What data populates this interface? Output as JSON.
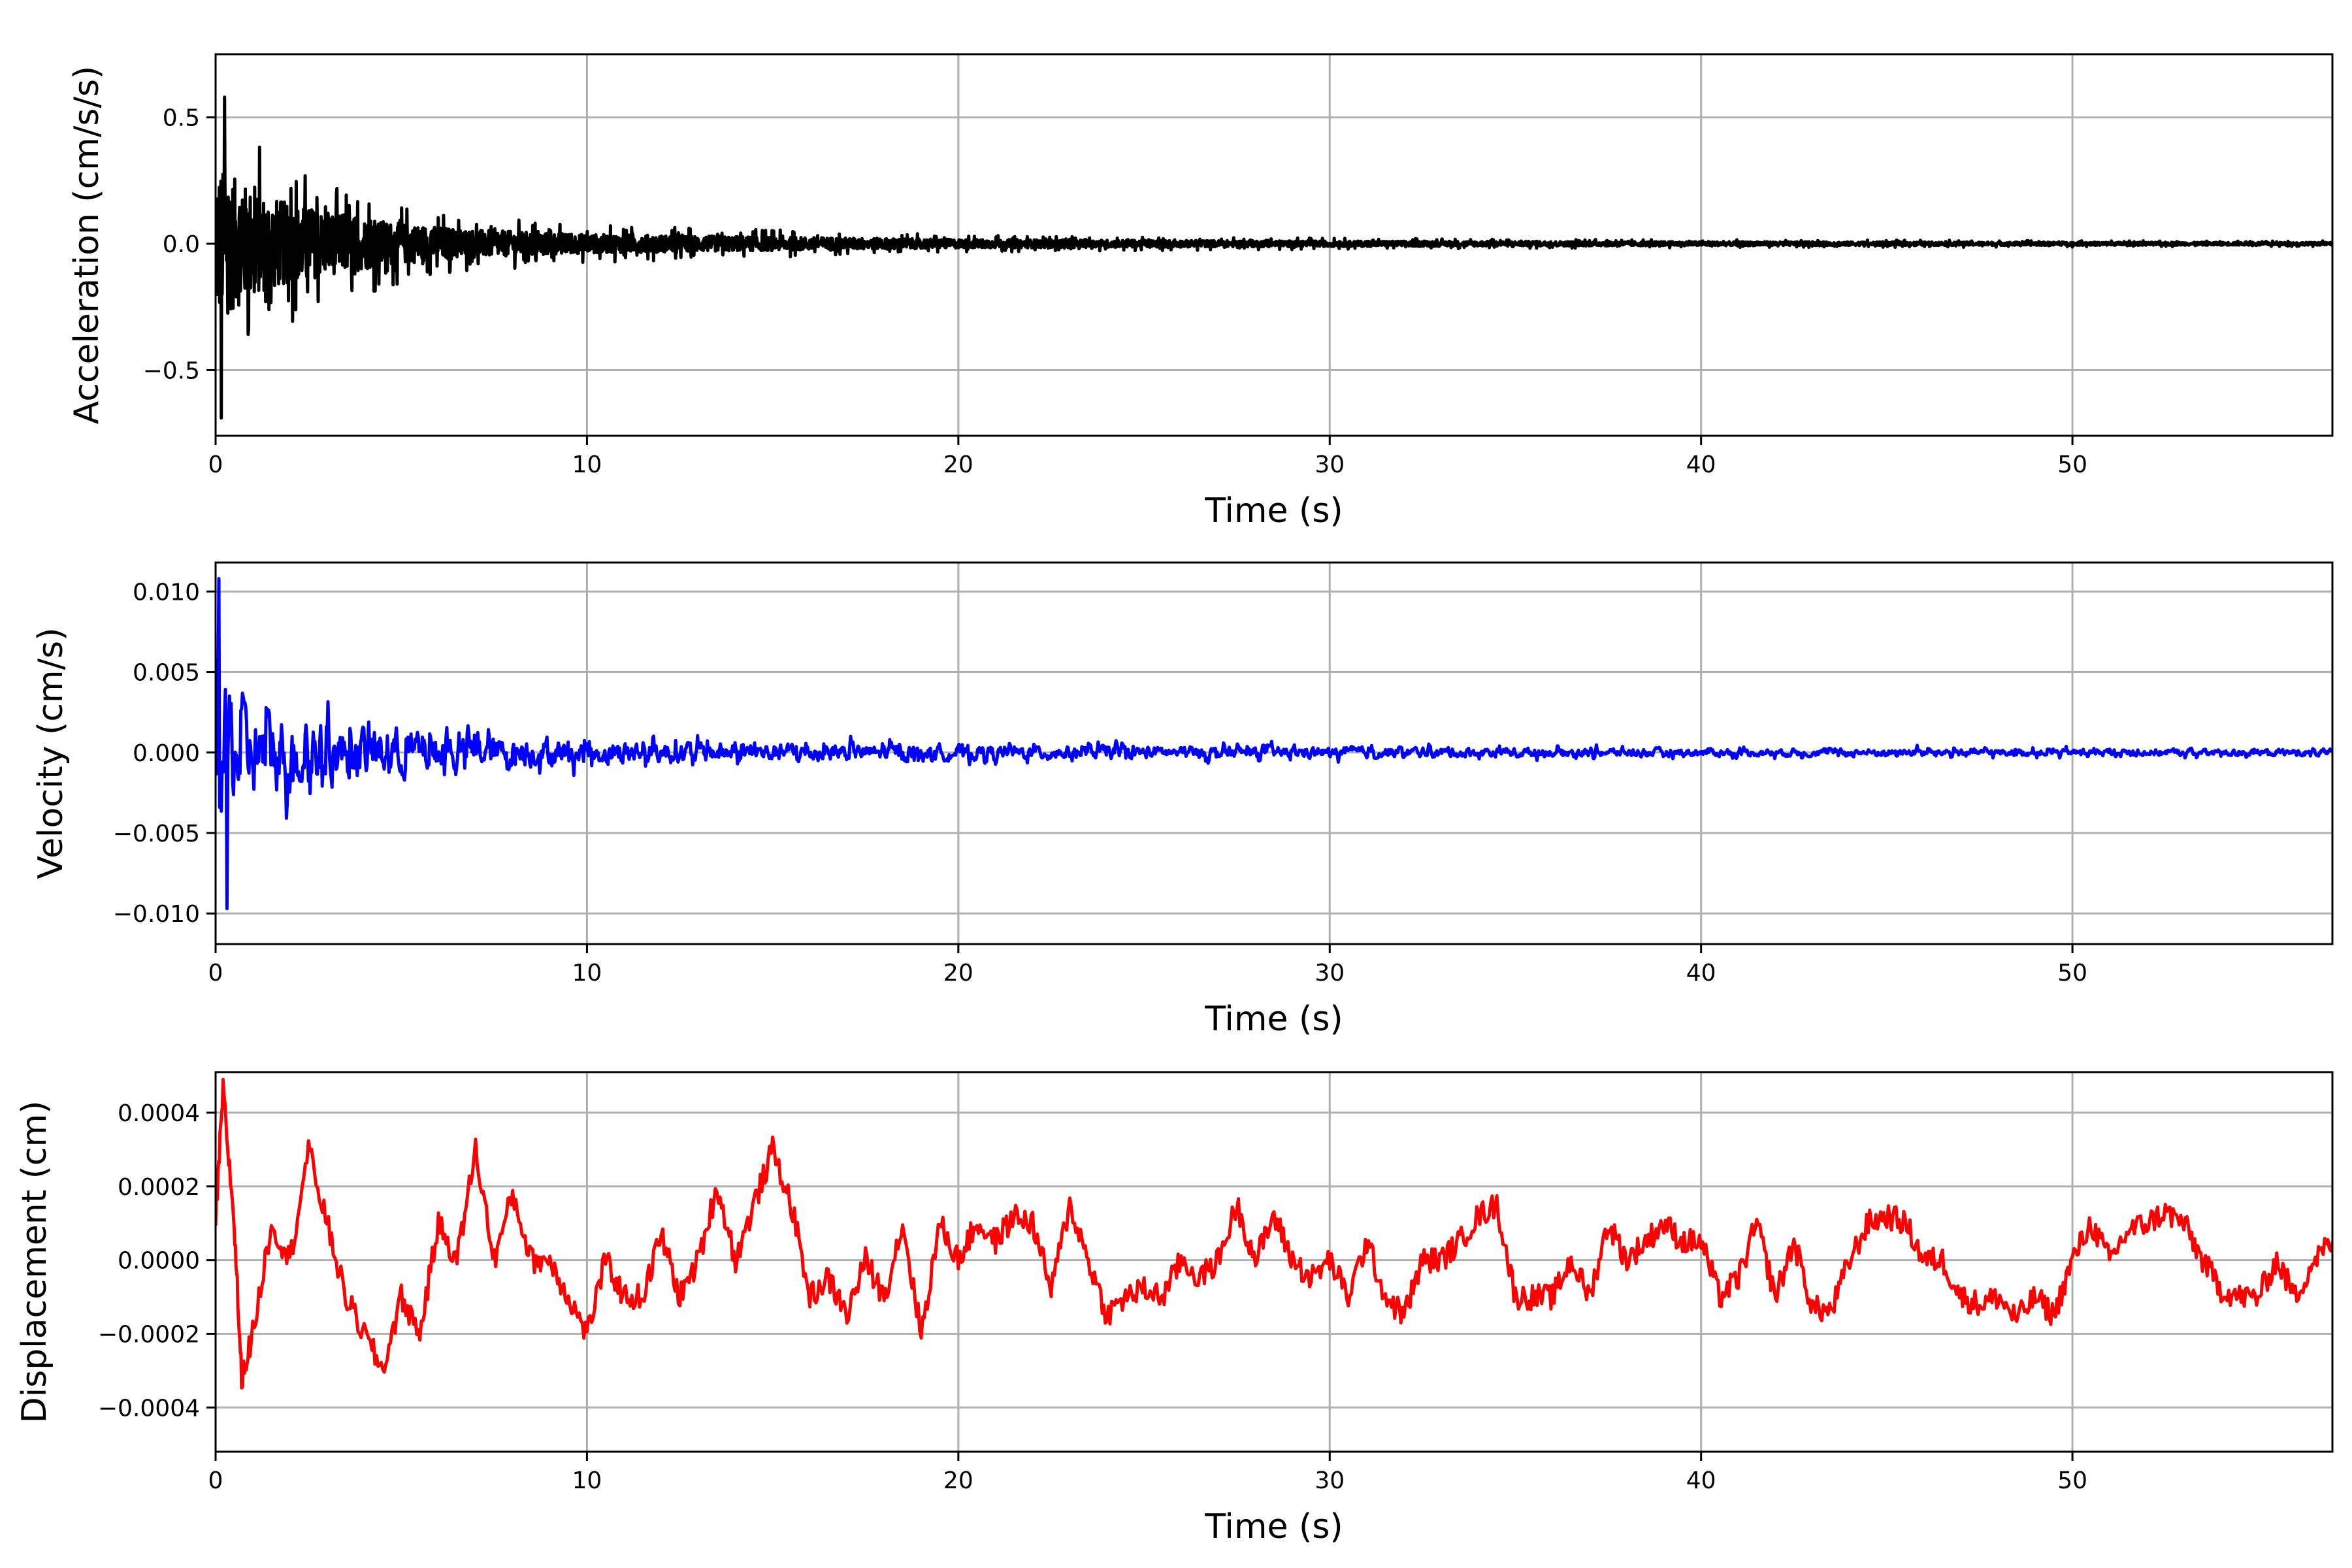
{
  "chart_data": [
    {
      "type": "line",
      "title": "",
      "xlabel": "Time (s)",
      "ylabel": "Acceleration (cm/s/s)",
      "color": "#000000",
      "xlim": [
        0,
        57
      ],
      "ylim": [
        -0.76,
        0.75
      ],
      "xticks": [
        0,
        10,
        20,
        30,
        40,
        50
      ],
      "xtick_labels": [
        "0",
        "10",
        "20",
        "30",
        "40",
        "50"
      ],
      "yticks": [
        -0.5,
        0.0,
        0.5
      ],
      "ytick_labels": [
        "−0.5",
        "0.0",
        "0.5"
      ],
      "grid": true,
      "signal": "decaying noise",
      "envelope": {
        "t": [
          0,
          1,
          2,
          3,
          5,
          7,
          10,
          15,
          20,
          30,
          40,
          57
        ],
        "amp": [
          0.62,
          0.42,
          0.32,
          0.25,
          0.16,
          0.11,
          0.075,
          0.055,
          0.035,
          0.022,
          0.016,
          0.011
        ]
      },
      "peaks": {
        "max": 0.58,
        "min": -0.69
      }
    },
    {
      "type": "line",
      "title": "",
      "xlabel": "Time (s)",
      "ylabel": "Velocity (cm/s)",
      "color": "#0000ff",
      "xlim": [
        0,
        57
      ],
      "ylim": [
        -0.0119,
        0.0118
      ],
      "xticks": [
        0,
        10,
        20,
        30,
        40,
        50
      ],
      "xtick_labels": [
        "0",
        "10",
        "20",
        "30",
        "40",
        "50"
      ],
      "yticks": [
        -0.01,
        -0.005,
        0.0,
        0.005,
        0.01
      ],
      "ytick_labels": [
        "−0.010",
        "−0.005",
        "0.000",
        "0.005",
        "0.010"
      ],
      "grid": true,
      "signal": "decaying noise",
      "envelope": {
        "t": [
          0,
          1,
          2,
          3,
          5,
          7,
          10,
          15,
          20,
          30,
          40,
          57
        ],
        "amp": [
          0.0105,
          0.0065,
          0.0055,
          0.0045,
          0.0035,
          0.0025,
          0.0018,
          0.0014,
          0.0011,
          0.0008,
          0.0006,
          0.0005
        ]
      },
      "peaks": {
        "max": 0.0108,
        "min": -0.0097
      }
    },
    {
      "type": "line",
      "title": "",
      "xlabel": "Time (s)",
      "ylabel": "Displacement (cm)",
      "color": "#ff0000",
      "xlim": [
        0,
        57
      ],
      "ylim": [
        -0.00052,
        0.00051
      ],
      "xticks": [
        0,
        10,
        20,
        30,
        40,
        50
      ],
      "xtick_labels": [
        "0",
        "10",
        "20",
        "30",
        "40",
        "50"
      ],
      "yticks": [
        -0.0004,
        -0.0002,
        0.0,
        0.0002,
        0.0004
      ],
      "ytick_labels": [
        "−0.0004",
        "−0.0002",
        "0.0000",
        "0.0002",
        "0.0004"
      ],
      "grid": true,
      "x": [
        0,
        0.2,
        0.5,
        0.7,
        1,
        1.5,
        2,
        2.5,
        3,
        3.5,
        4,
        4.5,
        5,
        5.5,
        6,
        6.5,
        7,
        7.5,
        8,
        8.5,
        9,
        9.5,
        10,
        10.5,
        11,
        11.5,
        12,
        12.5,
        13,
        13.5,
        14,
        14.5,
        15,
        15.5,
        16,
        16.5,
        17,
        17.5,
        18,
        18.5,
        19,
        19.5,
        20,
        20.5,
        21,
        21.5,
        22,
        22.5,
        23,
        23.5,
        24,
        24.5,
        25,
        25.5,
        26,
        26.5,
        27,
        27.5,
        28,
        28.5,
        29,
        29.5,
        30,
        30.5,
        31,
        31.5,
        32,
        32.5,
        33,
        33.5,
        34,
        34.5,
        35,
        35.5,
        36,
        36.5,
        37,
        37.5,
        38,
        38.5,
        39,
        39.5,
        40,
        40.5,
        41,
        41.5,
        42,
        42.5,
        43,
        43.5,
        44,
        44.5,
        45,
        45.5,
        46,
        46.5,
        47,
        47.5,
        48,
        48.5,
        49,
        49.5,
        50,
        50.5,
        51,
        51.5,
        52,
        52.5,
        53,
        53.5,
        54,
        54.5,
        55,
        55.5,
        56,
        56.5,
        57
      ],
      "y": [
        0.0001,
        0.00046,
        0.0001,
        -0.00032,
        -0.0002,
        0.0001,
        0.0,
        0.0003,
        0.0001,
        -0.0001,
        -0.0002,
        -0.0003,
        -0.0001,
        -0.0002,
        0.0001,
        0.0,
        0.0003,
        0.0,
        0.00018,
        0.0,
        0.0,
        -0.0001,
        -0.0002,
        0.0,
        -0.0001,
        -0.0001,
        7e-05,
        -0.0001,
        0.0,
        0.0002,
        0.0,
        0.00015,
        0.0003,
        0.00015,
        -0.0001,
        -5e-05,
        -0.00015,
        0.0,
        -0.0001,
        0.0001,
        -0.0002,
        0.0001,
        0.0,
        0.0001,
        5e-05,
        0.00012,
        0.0001,
        -8e-05,
        0.00015,
        0.0,
        -0.00015,
        -0.0001,
        -8e-05,
        -0.0001,
        0.0,
        -5e-05,
        0.0,
        0.00015,
        0.0,
        0.00012,
        0.0,
        -5e-05,
        0.0,
        -0.0001,
        5e-05,
        -0.0001,
        -0.00015,
        0.0,
        0.0,
        5e-05,
        0.00012,
        0.00015,
        -0.0001,
        -0.0001,
        -0.0001,
        0.0,
        -0.0001,
        0.0001,
        0.0,
        5e-05,
        0.0001,
        5e-05,
        5e-05,
        -0.0001,
        -5e-05,
        0.0001,
        -0.0001,
        5e-05,
        -0.00013,
        -0.00014,
        0.0,
        0.0001,
        0.00012,
        0.0001,
        0.0,
        0.0,
        -0.0001,
        -0.00012,
        -0.0001,
        -0.00016,
        -0.0001,
        -0.00015,
        0.0,
        0.0001,
        0.0,
        8e-05,
        0.0001,
        0.00013,
        0.0001,
        0.0,
        -8e-05,
        -0.0001,
        -0.0001,
        0.0,
        -0.0001,
        0.0,
        5e-05
      ]
    }
  ]
}
